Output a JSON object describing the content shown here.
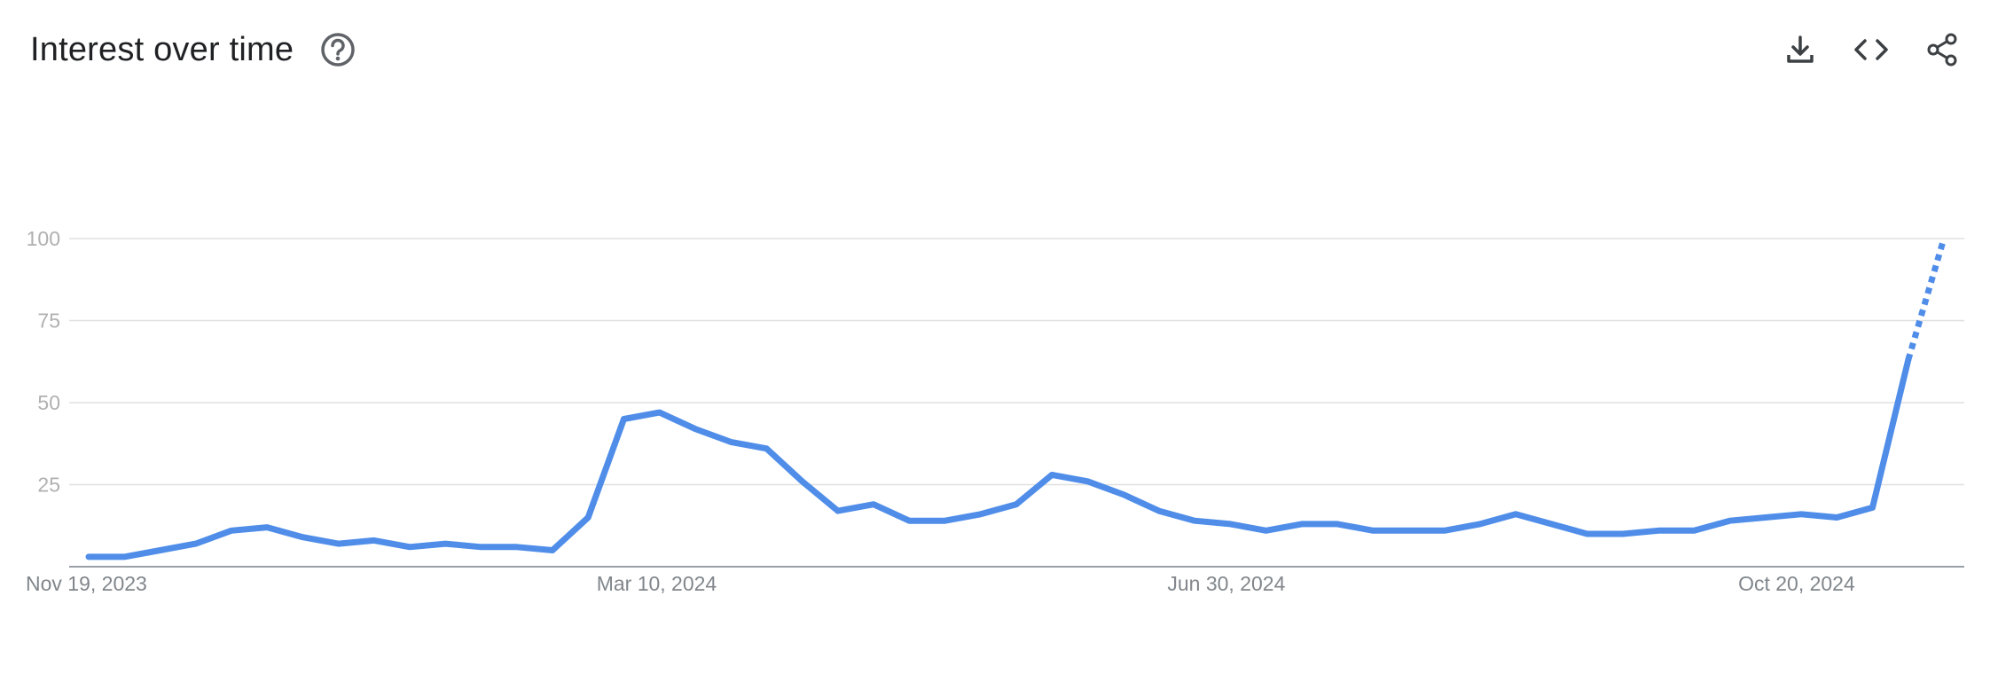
{
  "header": {
    "title": "Interest over time",
    "icons": {
      "help": "help-circle-icon",
      "download": "download-icon",
      "embed": "code-icon",
      "share": "share-icon"
    }
  },
  "colors": {
    "line": "#4f8de9",
    "grid": "#e0e0e0",
    "axis": "#9aa0a6",
    "tick": "#b0b0b0",
    "xtick": "#80868b"
  },
  "chart_data": {
    "type": "line",
    "title": "",
    "xlabel": "",
    "ylabel": "",
    "ylim": [
      0,
      100
    ],
    "yticks": [
      "100",
      "75",
      "50",
      "25"
    ],
    "ytick_values": [
      100,
      75,
      50,
      25
    ],
    "grid": true,
    "xtick_labels": [
      "Nov 19, 2023",
      "Mar 10, 2024",
      "Jun 30, 2024",
      "Oct 20, 2024"
    ],
    "xtick_index": [
      0,
      16,
      32,
      48
    ],
    "partial_last_point": true,
    "series": [
      {
        "values": [
          3,
          3,
          5,
          7,
          11,
          12,
          9,
          7,
          8,
          6,
          7,
          6,
          6,
          5,
          15,
          45,
          47,
          42,
          38,
          36,
          26,
          17,
          19,
          14,
          14,
          16,
          19,
          28,
          26,
          22,
          17,
          14,
          13,
          11,
          13,
          13,
          11,
          11,
          11,
          13,
          16,
          13,
          10,
          10,
          11,
          11,
          14,
          15,
          16,
          15,
          18,
          63,
          100
        ]
      }
    ]
  }
}
